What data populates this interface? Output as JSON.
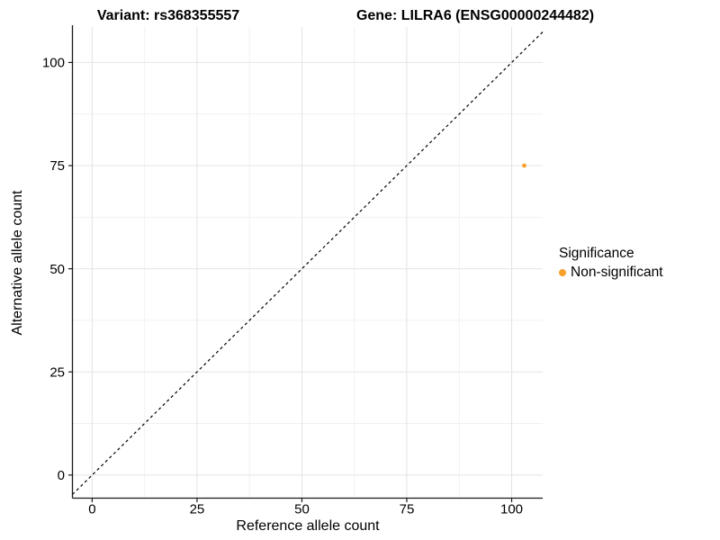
{
  "chart_data": {
    "type": "scatter",
    "title_left": "Variant: rs368355557",
    "title_right": "Gene: LILRA6 (ENSG00000244482)",
    "xlabel": "Reference allele count",
    "ylabel": "Alternative allele count",
    "xlim": [
      -4.7,
      107.4
    ],
    "ylim": [
      -5.6,
      108.6
    ],
    "x_ticks": [
      0,
      25,
      50,
      75,
      100
    ],
    "y_ticks": [
      0,
      25,
      50,
      75,
      100
    ],
    "x_minor_ticks": [
      12.5,
      37.5,
      62.5,
      87.5
    ],
    "y_minor_ticks": [
      12.5,
      37.5,
      62.5,
      87.5
    ],
    "grid": true,
    "identity_line": {
      "style": "dashed",
      "color": "#000000",
      "from": -4.7,
      "to": 107.4
    },
    "series": [
      {
        "name": "Non-significant",
        "color": "#F9A02D",
        "point_radius": 2.4,
        "points": [
          {
            "x": 103,
            "y": 75
          }
        ]
      }
    ],
    "legend": {
      "title": "Significance",
      "position": "right",
      "items": [
        {
          "label": "Non-significant",
          "color": "#F9A02D"
        }
      ]
    },
    "colors": {
      "background": "#FFFFFF",
      "grid_major": "#E4E4E4",
      "grid_minor": "#F1F1F1",
      "axis_line": "#1A1A1A",
      "tick_text": "#000000",
      "point": "#F9A02D"
    }
  }
}
